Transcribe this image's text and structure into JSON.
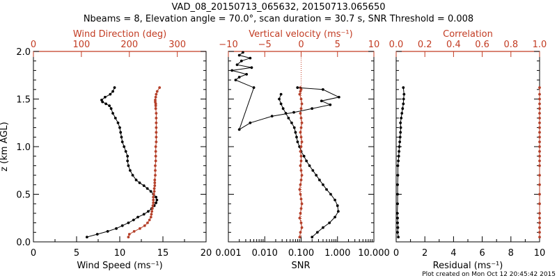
{
  "title_line1": "VAD_08_20150713_065632, 20150713.065650",
  "title_line2": "Nbeams = 8, Elevation angle = 70.0°, scan duration = 30.7 s, SNR Threshold = 0.008",
  "footer": "Plot created on Mon Oct 12 20:45:42 2015",
  "colors": {
    "red": "#c23b22",
    "black": "#000000",
    "marker_red": "#b5402a"
  },
  "chart_data": [
    {
      "type": "line",
      "panel": "wind",
      "ylabel": "z (km AGL)",
      "ylim": [
        0.0,
        2.0
      ],
      "yticks": [
        "0.0",
        "0.5",
        "1.0",
        "1.5",
        "2.0"
      ],
      "xlabel": "Wind Speed (ms⁻¹)",
      "xlim": [
        0,
        20
      ],
      "xticks": [
        "0",
        "5",
        "10",
        "15",
        "20"
      ],
      "top_xlabel": "Wind Direction (deg)",
      "top_xlim": [
        0,
        360
      ],
      "top_xticks": [
        "0",
        "100",
        "200",
        "300"
      ],
      "series": [
        {
          "axis": "bottom",
          "values_x": [
            6.2,
            7.4,
            8.6,
            9.6,
            10.3,
            11.0,
            11.6,
            12.1,
            12.8,
            13.3,
            13.7,
            14.0,
            14.2,
            14.3,
            14.2,
            13.9,
            13.6,
            13.2,
            12.8,
            12.3,
            11.9,
            11.5,
            11.2,
            11.0,
            10.9,
            10.9,
            10.7,
            10.5,
            10.3,
            10.2,
            10.1,
            10.0,
            9.8,
            9.5,
            9.2,
            9.0,
            8.8,
            8.4,
            8.0,
            7.9,
            8.3,
            8.9,
            9.2,
            9.4
          ],
          "values_y": [
            0.05,
            0.08,
            0.11,
            0.14,
            0.17,
            0.2,
            0.23,
            0.26,
            0.29,
            0.32,
            0.35,
            0.38,
            0.41,
            0.44,
            0.47,
            0.5,
            0.53,
            0.56,
            0.59,
            0.62,
            0.65,
            0.7,
            0.75,
            0.8,
            0.85,
            0.9,
            0.95,
            1.0,
            1.05,
            1.1,
            1.15,
            1.2,
            1.25,
            1.3,
            1.35,
            1.4,
            1.43,
            1.45,
            1.47,
            1.49,
            1.52,
            1.55,
            1.58,
            1.62
          ]
        },
        {
          "axis": "top",
          "values_x": [
            198,
            200,
            210,
            222,
            232,
            238,
            242,
            245,
            246,
            247,
            248,
            249,
            250,
            250,
            250,
            251,
            252,
            252,
            253,
            253,
            253,
            254,
            254,
            254,
            255,
            255,
            255,
            255,
            256,
            256,
            256,
            256,
            256,
            256,
            256,
            255,
            255,
            255,
            254,
            254,
            255,
            256,
            258,
            263
          ],
          "values_y": [
            0.05,
            0.08,
            0.11,
            0.14,
            0.17,
            0.2,
            0.23,
            0.26,
            0.29,
            0.32,
            0.35,
            0.38,
            0.41,
            0.44,
            0.47,
            0.5,
            0.53,
            0.56,
            0.59,
            0.62,
            0.65,
            0.7,
            0.75,
            0.8,
            0.85,
            0.9,
            0.95,
            1.0,
            1.05,
            1.1,
            1.15,
            1.2,
            1.25,
            1.3,
            1.35,
            1.4,
            1.43,
            1.45,
            1.47,
            1.49,
            1.52,
            1.55,
            1.58,
            1.62
          ]
        }
      ]
    },
    {
      "type": "line",
      "panel": "snr",
      "xscale": "log",
      "xlabel": "SNR",
      "xlim": [
        0.001,
        10.0
      ],
      "xticks": [
        "0.001",
        "0.010",
        "0.100",
        "1.000",
        "10.000"
      ],
      "top_xlabel": "Vertical velocity (ms⁻¹)",
      "top_xlim": [
        -10,
        10
      ],
      "top_xticks": [
        "−10",
        "−5",
        "0",
        "5",
        "10"
      ],
      "ylim": [
        0.0,
        2.0
      ],
      "series": [
        {
          "axis": "bottom",
          "values_x": [
            0.2,
            0.28,
            0.4,
            0.6,
            0.85,
            1.05,
            1.0,
            0.85,
            0.65,
            0.5,
            0.4,
            0.32,
            0.26,
            0.21,
            0.17,
            0.14,
            0.12,
            0.1,
            0.09,
            0.08,
            0.075,
            0.07,
            0.065,
            0.055,
            0.045,
            0.038,
            0.032,
            0.028,
            0.025,
            0.028
          ],
          "values_y": [
            0.05,
            0.1,
            0.15,
            0.2,
            0.26,
            0.32,
            0.38,
            0.44,
            0.5,
            0.55,
            0.6,
            0.65,
            0.7,
            0.75,
            0.8,
            0.85,
            0.9,
            0.95,
            1.0,
            1.05,
            1.1,
            1.15,
            1.2,
            1.25,
            1.3,
            1.35,
            1.4,
            1.45,
            1.5,
            1.55
          ]
        },
        {
          "axis": "top",
          "values_x": [
            -0.2,
            -0.1,
            0.1,
            0.0,
            -0.2,
            -0.1,
            0.0,
            0.1,
            0.0,
            -0.1,
            -0.2,
            -0.1,
            0.0,
            0.1,
            0.0,
            -0.1,
            0.0,
            0.0,
            -0.1,
            0.0,
            0.1,
            0.0,
            -0.1,
            0.0,
            0.1,
            0.0,
            -0.1,
            0.0,
            0.1,
            0.0,
            -0.2,
            -0.1,
            0.0,
            -0.1
          ],
          "values_y": [
            0.05,
            0.1,
            0.15,
            0.2,
            0.25,
            0.3,
            0.35,
            0.4,
            0.45,
            0.5,
            0.55,
            0.6,
            0.65,
            0.7,
            0.75,
            0.8,
            0.85,
            0.9,
            0.95,
            1.0,
            1.05,
            1.1,
            1.15,
            1.2,
            1.25,
            1.3,
            1.35,
            1.4,
            1.45,
            1.5,
            1.55,
            1.58,
            1.6,
            1.62
          ]
        },
        {
          "axis": "top",
          "role": "upper-profile",
          "values_x": [
            -0.5,
            3.0,
            5.2,
            2.8,
            4.0,
            1.5,
            -1.0,
            -4.0,
            -7.0,
            -8.5,
            -6.5,
            -9.0,
            -8.5,
            -7.5,
            -9.5,
            -6.8,
            -8.8,
            -8.2,
            -7.0,
            -8.5,
            -8.0
          ],
          "values_y": [
            1.62,
            1.6,
            1.52,
            1.48,
            1.44,
            1.4,
            1.36,
            1.32,
            1.25,
            1.18,
            1.62,
            1.7,
            1.73,
            1.76,
            1.8,
            1.83,
            1.86,
            1.9,
            1.93,
            1.96,
            1.99
          ]
        }
      ]
    },
    {
      "type": "line",
      "panel": "residual",
      "xlabel": "Residual (ms⁻¹)",
      "xlim": [
        0,
        10
      ],
      "xticks": [
        "0",
        "2",
        "4",
        "6",
        "8",
        "10"
      ],
      "top_xlabel": "Correlation",
      "top_xlim": [
        0.0,
        1.0
      ],
      "top_xticks": [
        "0.0",
        "0.2",
        "0.4",
        "0.6",
        "0.8",
        "1.0"
      ],
      "ylim": [
        0.0,
        2.0
      ],
      "series": [
        {
          "axis": "bottom",
          "values_x": [
            0.15,
            0.1,
            0.12,
            0.1,
            0.1,
            0.08,
            0.1,
            0.1,
            0.1,
            0.12,
            0.12,
            0.15,
            0.18,
            0.2,
            0.22,
            0.25,
            0.28,
            0.3,
            0.32,
            0.3,
            0.35,
            0.4,
            0.45,
            0.5,
            0.52,
            0.55,
            0.5
          ],
          "values_y": [
            0.05,
            0.1,
            0.15,
            0.2,
            0.25,
            0.3,
            0.4,
            0.5,
            0.6,
            0.7,
            0.8,
            0.85,
            0.9,
            0.95,
            1.0,
            1.05,
            1.1,
            1.15,
            1.2,
            1.25,
            1.3,
            1.35,
            1.4,
            1.45,
            1.5,
            1.55,
            1.62
          ]
        },
        {
          "axis": "top",
          "values_x": [
            1.0,
            1.0,
            1.0,
            1.0,
            1.0,
            1.0,
            1.0,
            1.0,
            1.0,
            1.0,
            1.0,
            1.0,
            1.0,
            1.0,
            1.0,
            1.0,
            1.0,
            1.0,
            1.0,
            1.0,
            1.0,
            1.0,
            1.0,
            1.0,
            1.0,
            1.0,
            1.0
          ],
          "values_y": [
            0.05,
            0.1,
            0.15,
            0.2,
            0.25,
            0.3,
            0.4,
            0.5,
            0.6,
            0.7,
            0.8,
            0.85,
            0.9,
            0.95,
            1.0,
            1.05,
            1.1,
            1.15,
            1.2,
            1.25,
            1.3,
            1.35,
            1.4,
            1.45,
            1.5,
            1.55,
            1.62
          ]
        }
      ]
    }
  ]
}
